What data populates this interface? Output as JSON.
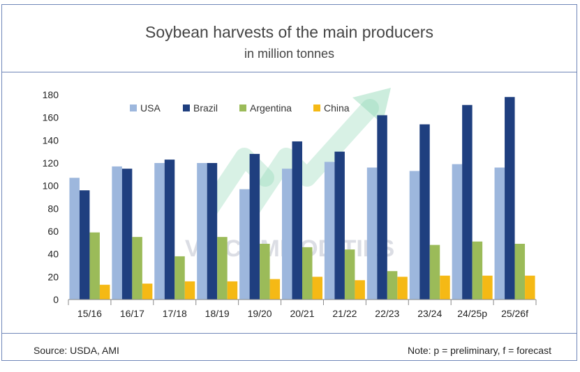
{
  "title": "Soybean harvests of the main producers",
  "subtitle": "in million tonnes",
  "source": "Source: USDA, AMI",
  "note": "Note: p = preliminary, f = forecast",
  "watermark": "VNICOMMODITIES",
  "colors": {
    "USA": "#9db7dd",
    "Brazil": "#1f3f7f",
    "Argentina": "#9bbb59",
    "China": "#f5b915",
    "frame": "#6f86b8"
  },
  "chart_data": {
    "type": "bar",
    "categories": [
      "15/16",
      "16/17",
      "17/18",
      "18/19",
      "19/20",
      "20/21",
      "21/22",
      "22/23",
      "23/24",
      "24/25p",
      "25/26f"
    ],
    "series": [
      {
        "name": "USA",
        "values": [
          107,
          117,
          120,
          120,
          97,
          115,
          121,
          116,
          113,
          119,
          116
        ]
      },
      {
        "name": "Brazil",
        "values": [
          96,
          115,
          123,
          120,
          128,
          139,
          130,
          162,
          154,
          171,
          178
        ]
      },
      {
        "name": "Argentina",
        "values": [
          59,
          55,
          38,
          55,
          49,
          46,
          44,
          25,
          48,
          51,
          49
        ]
      },
      {
        "name": "China",
        "values": [
          13,
          14,
          16,
          16,
          18,
          20,
          17,
          20,
          21,
          21,
          21
        ]
      }
    ],
    "yticks": [
      0,
      20,
      40,
      60,
      80,
      100,
      120,
      140,
      160,
      180
    ],
    "ylim": [
      0,
      180
    ],
    "xlabel": "",
    "ylabel": "",
    "grid": false,
    "legend_position": "top"
  }
}
